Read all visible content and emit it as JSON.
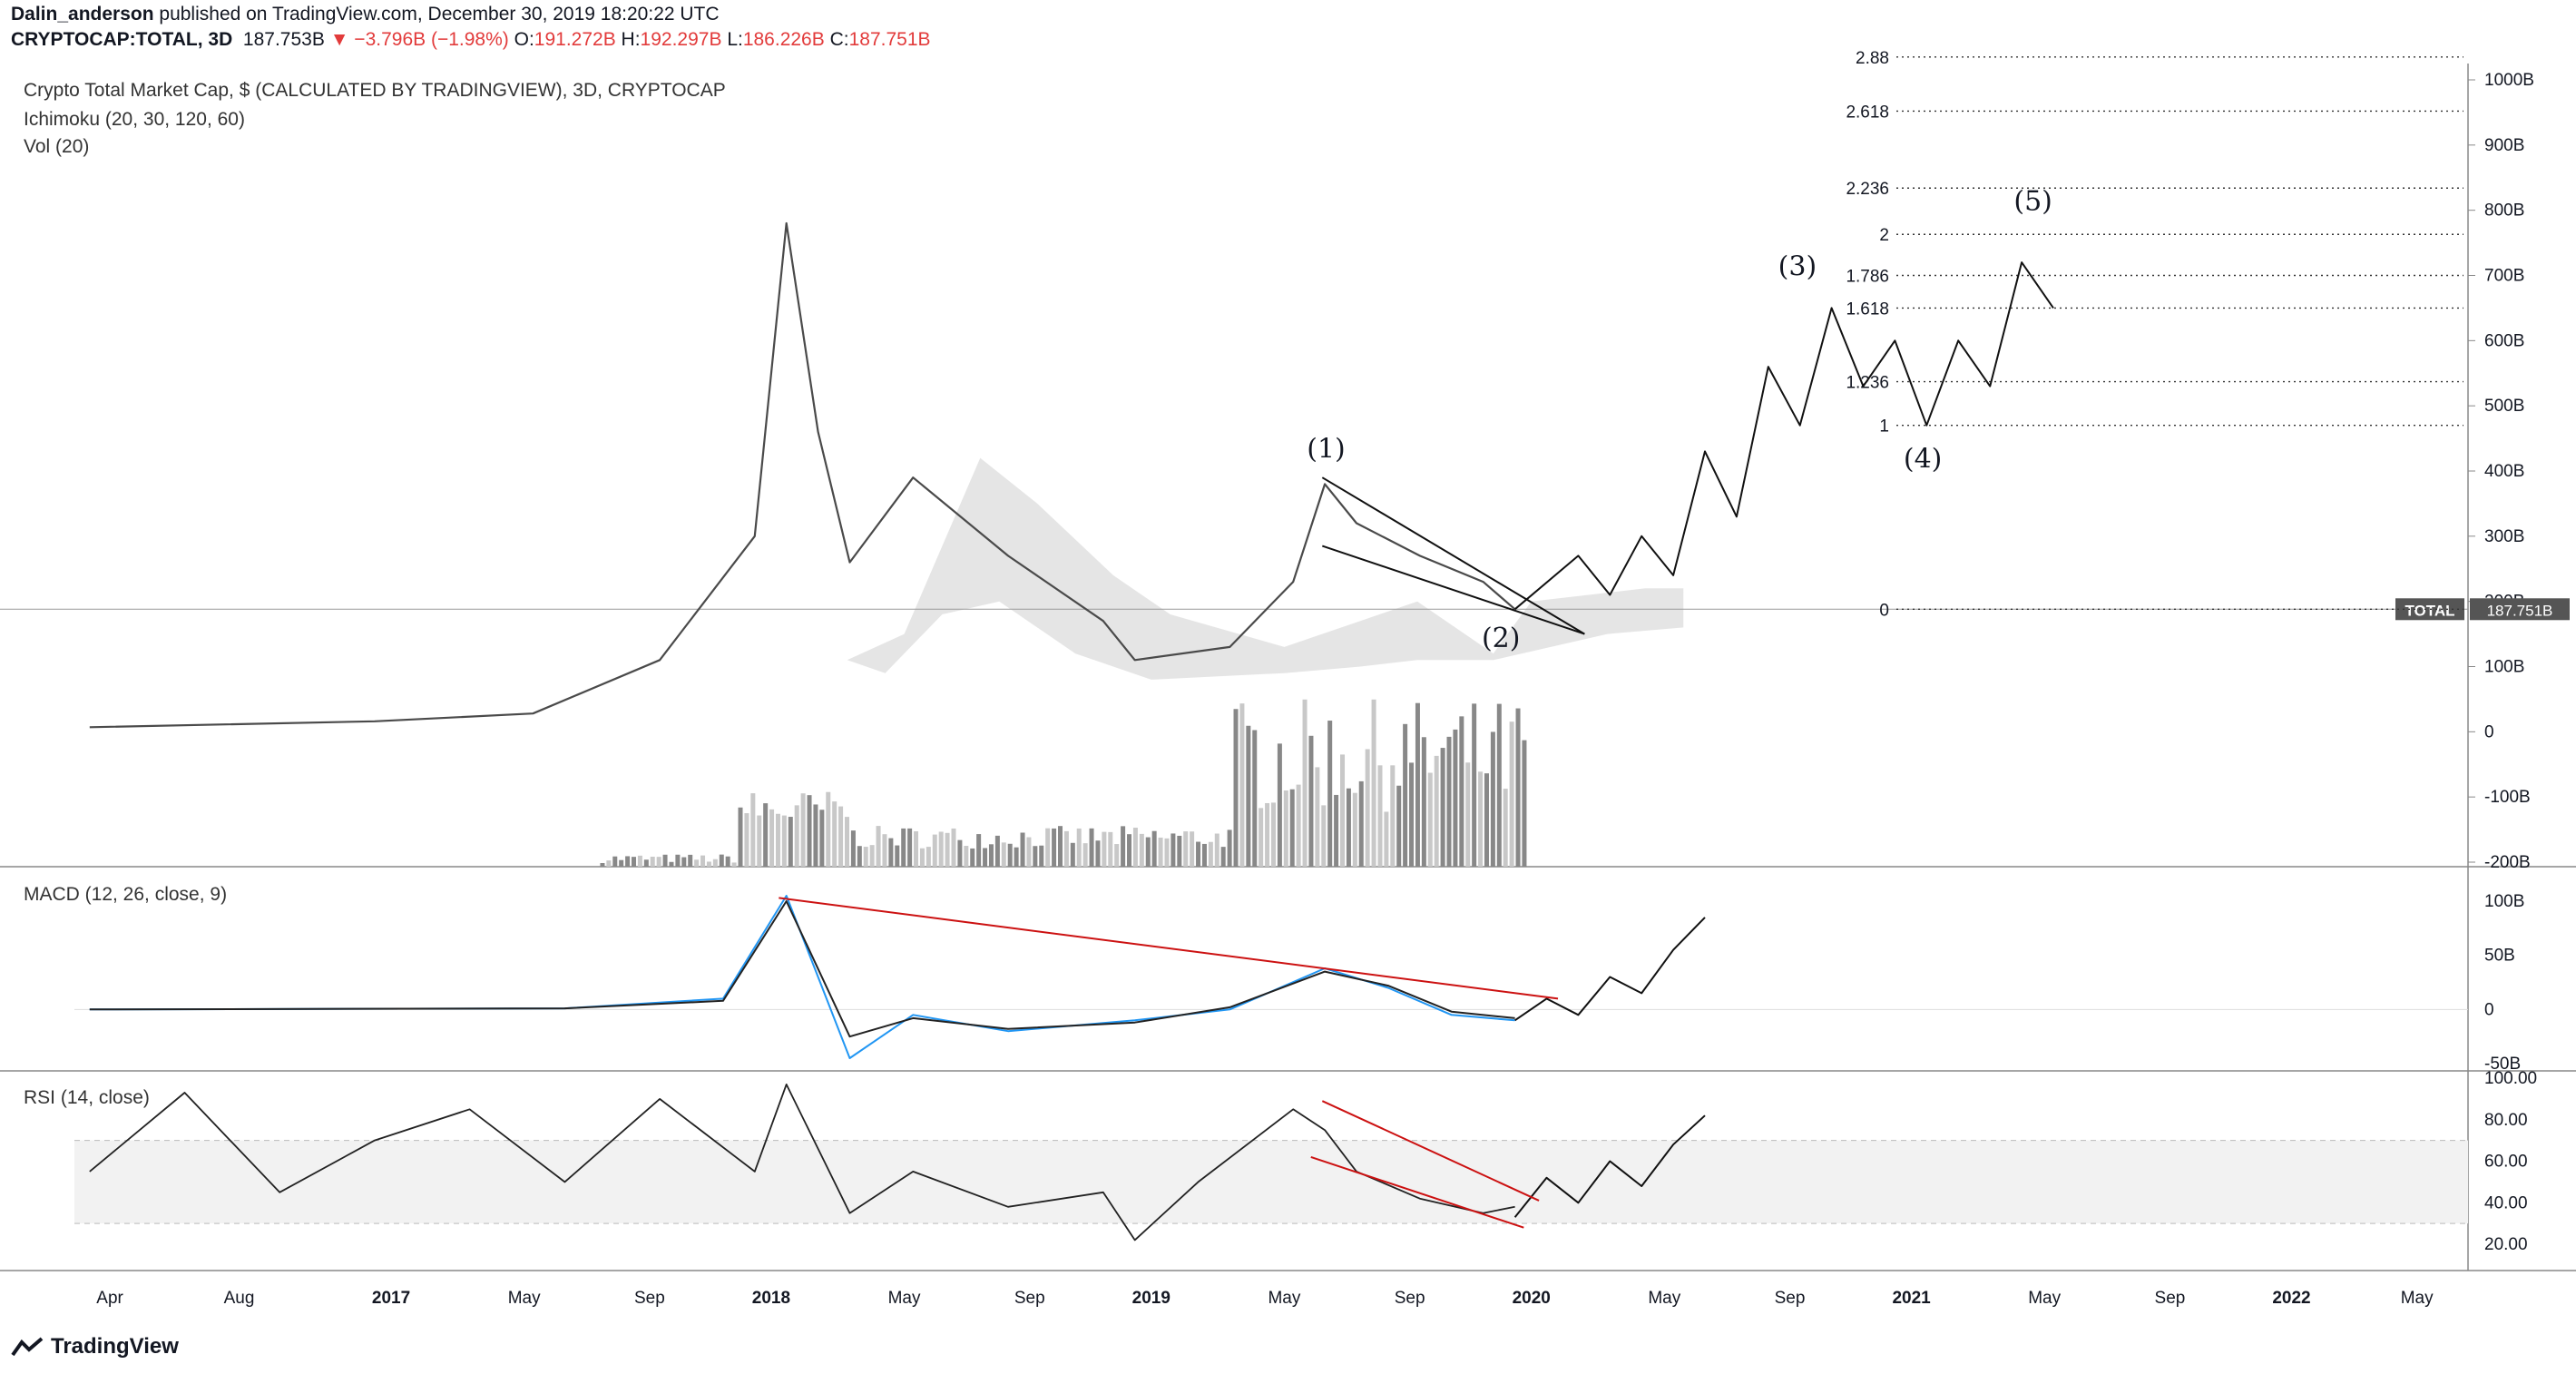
{
  "header": {
    "author": "Dalin_anderson",
    "published_text": "published on TradingView.com, December 30, 2019 18:20:22 UTC",
    "symbol": "CRYPTOCAP:TOTAL, 3D",
    "last": "187.753B",
    "change": "▼ −3.796B (−1.98%)",
    "o_label": "O:",
    "o_value": "191.272B",
    "h_label": "H:",
    "h_value": "192.297B",
    "l_label": "L:",
    "l_value": "186.226B",
    "c_label": "C:",
    "c_value": "187.751B"
  },
  "panes": {
    "main_title": "Crypto Total Market Cap, $ (CALCULATED BY TRADINGVIEW), 3D, CRYPTOCAP",
    "ichimoku": "Ichimoku (20, 30, 120, 60)",
    "vol": "Vol (20)",
    "macd": "MACD (12, 26, close, 9)",
    "rsi": "RSI (14, close)"
  },
  "footer": {
    "brand": "TradingView"
  },
  "colors": {
    "price": "#4a4a4a",
    "cloud": "#d0d0d0",
    "macd": "#2196f3",
    "signal": "#222222",
    "trend": "#cc1111",
    "grid": "#b0b0b0"
  },
  "chart_data": [
    {
      "type": "line",
      "title": "Crypto Total Market Cap, $ (CALCULATED BY TRADINGVIEW), 3D, CRYPTOCAP",
      "x_ticks": [
        "Apr",
        "Aug",
        "2017",
        "May",
        "Sep",
        "2018",
        "May",
        "Sep",
        "2019",
        "May",
        "Sep",
        "2020",
        "May",
        "Sep",
        "2021",
        "May",
        "Sep",
        "2022",
        "May"
      ],
      "y_ticks": [
        "1000B",
        "900B",
        "800B",
        "700B",
        "600B",
        "500B",
        "400B",
        "300B",
        "200B",
        "100B",
        "0",
        "-100B",
        "-200B"
      ],
      "y_unit": "B",
      "ylim": [
        -200,
        1000
      ],
      "last_value_label": "TOTAL",
      "last_value": "187.751B",
      "series": [
        {
          "name": "TOTAL",
          "x": [
            "2016-03",
            "2016-12",
            "2017-05",
            "2017-09",
            "2017-12",
            "2018-01",
            "2018-02",
            "2018-03",
            "2018-05",
            "2018-08",
            "2018-11",
            "2018-12",
            "2019-03",
            "2019-05",
            "2019-06",
            "2019-07",
            "2019-09",
            "2019-11",
            "2019-12"
          ],
          "y": [
            7,
            16,
            28,
            110,
            300,
            780,
            460,
            260,
            390,
            270,
            170,
            110,
            130,
            230,
            380,
            320,
            270,
            230,
            188
          ]
        }
      ],
      "projection": {
        "x": [
          "2019-12",
          "2020-02",
          "2020-03",
          "2020-04",
          "2020-05",
          "2020-06",
          "2020-07",
          "2020-08",
          "2020-09",
          "2020-10",
          "2020-11",
          "2020-12",
          "2021-01",
          "2021-02",
          "2021-03",
          "2021-04",
          "2021-05"
        ],
        "y": [
          188,
          270,
          210,
          300,
          240,
          430,
          330,
          560,
          470,
          650,
          530,
          600,
          470,
          600,
          530,
          720,
          650
        ]
      },
      "wave_labels": [
        "(1)",
        "(2)",
        "(3)",
        "(4)",
        "(5)"
      ],
      "fib_levels": [
        {
          "label": "0",
          "value": 188
        },
        {
          "label": "1",
          "value": 470
        },
        {
          "label": "1.236",
          "value": 537
        },
        {
          "label": "1.618",
          "value": 650
        },
        {
          "label": "1.786",
          "value": 700
        },
        {
          "label": "2",
          "value": 763
        },
        {
          "label": "2.236",
          "value": 834
        },
        {
          "label": "2.618",
          "value": 952
        },
        {
          "label": "2.88",
          "value": 1035
        }
      ],
      "indicators": [
        "Ichimoku (20, 30, 120, 60)",
        "Vol (20)"
      ]
    },
    {
      "type": "line",
      "title": "MACD (12, 26, close, 9)",
      "y_ticks": [
        "100B",
        "50B",
        "0",
        "-50B"
      ],
      "ylim": [
        -50,
        100
      ],
      "series": [
        {
          "name": "MACD",
          "x": [
            "2016-03",
            "2017-06",
            "2017-11",
            "2018-01",
            "2018-03",
            "2018-05",
            "2018-08",
            "2018-12",
            "2019-03",
            "2019-06",
            "2019-08",
            "2019-10",
            "2019-12"
          ],
          "y": [
            0,
            1,
            10,
            105,
            -45,
            -5,
            -20,
            -10,
            0,
            38,
            20,
            -5,
            -10
          ]
        },
        {
          "name": "Signal",
          "x": [
            "2016-03",
            "2017-06",
            "2017-11",
            "2018-01",
            "2018-03",
            "2018-05",
            "2018-08",
            "2018-12",
            "2019-03",
            "2019-06",
            "2019-08",
            "2019-10",
            "2019-12"
          ],
          "y": [
            0,
            1,
            8,
            100,
            -25,
            -8,
            -18,
            -12,
            2,
            35,
            22,
            -2,
            -8
          ]
        }
      ],
      "projection": {
        "x": [
          "2019-12",
          "2020-01",
          "2020-02",
          "2020-03",
          "2020-04",
          "2020-05",
          "2020-06"
        ],
        "y": [
          -10,
          10,
          -5,
          30,
          15,
          55,
          85
        ]
      }
    },
    {
      "type": "line",
      "title": "RSI (14, close)",
      "y_ticks": [
        "100.00",
        "80.00",
        "60.00",
        "40.00",
        "20.00"
      ],
      "ylim": [
        20,
        100
      ],
      "band": [
        30,
        70
      ],
      "series": [
        {
          "name": "RSI",
          "x": [
            "2016-03",
            "2016-06",
            "2016-09",
            "2016-12",
            "2017-03",
            "2017-06",
            "2017-09",
            "2017-12",
            "2018-01",
            "2018-03",
            "2018-05",
            "2018-08",
            "2018-11",
            "2018-12",
            "2019-02",
            "2019-05",
            "2019-06",
            "2019-07",
            "2019-09",
            "2019-11",
            "2019-12"
          ],
          "y": [
            55,
            93,
            45,
            70,
            85,
            50,
            90,
            55,
            97,
            35,
            55,
            38,
            45,
            22,
            50,
            85,
            75,
            55,
            42,
            35,
            38
          ]
        }
      ],
      "projection": {
        "x": [
          "2019-12",
          "2020-01",
          "2020-02",
          "2020-03",
          "2020-04",
          "2020-05",
          "2020-06"
        ],
        "y": [
          33,
          52,
          40,
          60,
          48,
          68,
          82
        ]
      }
    }
  ]
}
